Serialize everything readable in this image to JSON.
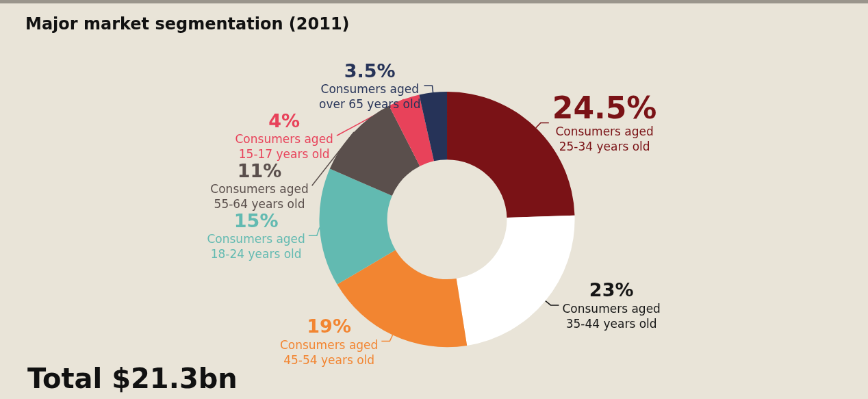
{
  "chart_data": {
    "type": "donut",
    "title": "Major market segmentation (2011)",
    "categories": [
      "Consumers aged 25-34 years old",
      "Consumers aged 35-44 years old",
      "Consumers aged 45-54 years old",
      "Consumers aged 18-24 years old",
      "Consumers aged 55-64 years old",
      "Consumers aged 15-17 years old",
      "Consumers aged over 65 years old"
    ],
    "values": [
      24.5,
      23,
      19,
      15,
      11,
      4,
      3.5
    ],
    "value_labels": [
      "24.5%",
      "23%",
      "19%",
      "15%",
      "11%",
      "4%",
      "3.5%"
    ],
    "colors": [
      "#7a1216",
      "#ffffff",
      "#f28531",
      "#62bab1",
      "#5a4f4c",
      "#e8425a",
      "#263358"
    ],
    "annotations": [
      "Total $21.3bn"
    ],
    "legend": false
  }
}
